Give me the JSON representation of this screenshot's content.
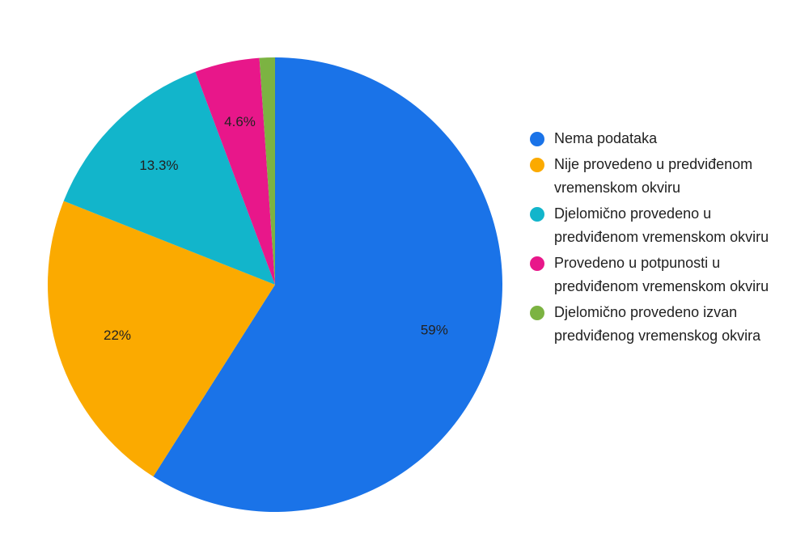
{
  "chart_data": {
    "type": "pie",
    "title": "",
    "start_angle_deg": 0,
    "direction": "clockwise",
    "legend_position": "right",
    "slices": [
      {
        "label": "Nema podataka",
        "value": 59,
        "display": "59%",
        "color": "#1a73e8"
      },
      {
        "label": "Nije provedeno u predviđenom vremenskom okviru",
        "value": 22,
        "display": "22%",
        "color": "#fbaa00"
      },
      {
        "label": "Djelomično provedeno u predviđenom vremenskom okviru",
        "value": 13.3,
        "display": "13.3%",
        "color": "#12b5cb"
      },
      {
        "label": "Provedeno u potpunosti u predviđenom vremenskom okviru",
        "value": 4.6,
        "display": "4.6%",
        "color": "#e8178a"
      },
      {
        "label": "Djelomično provedeno izvan predviđenog vremenskog okvira",
        "value": 1.1,
        "display": "",
        "color": "#7cb342"
      }
    ]
  }
}
